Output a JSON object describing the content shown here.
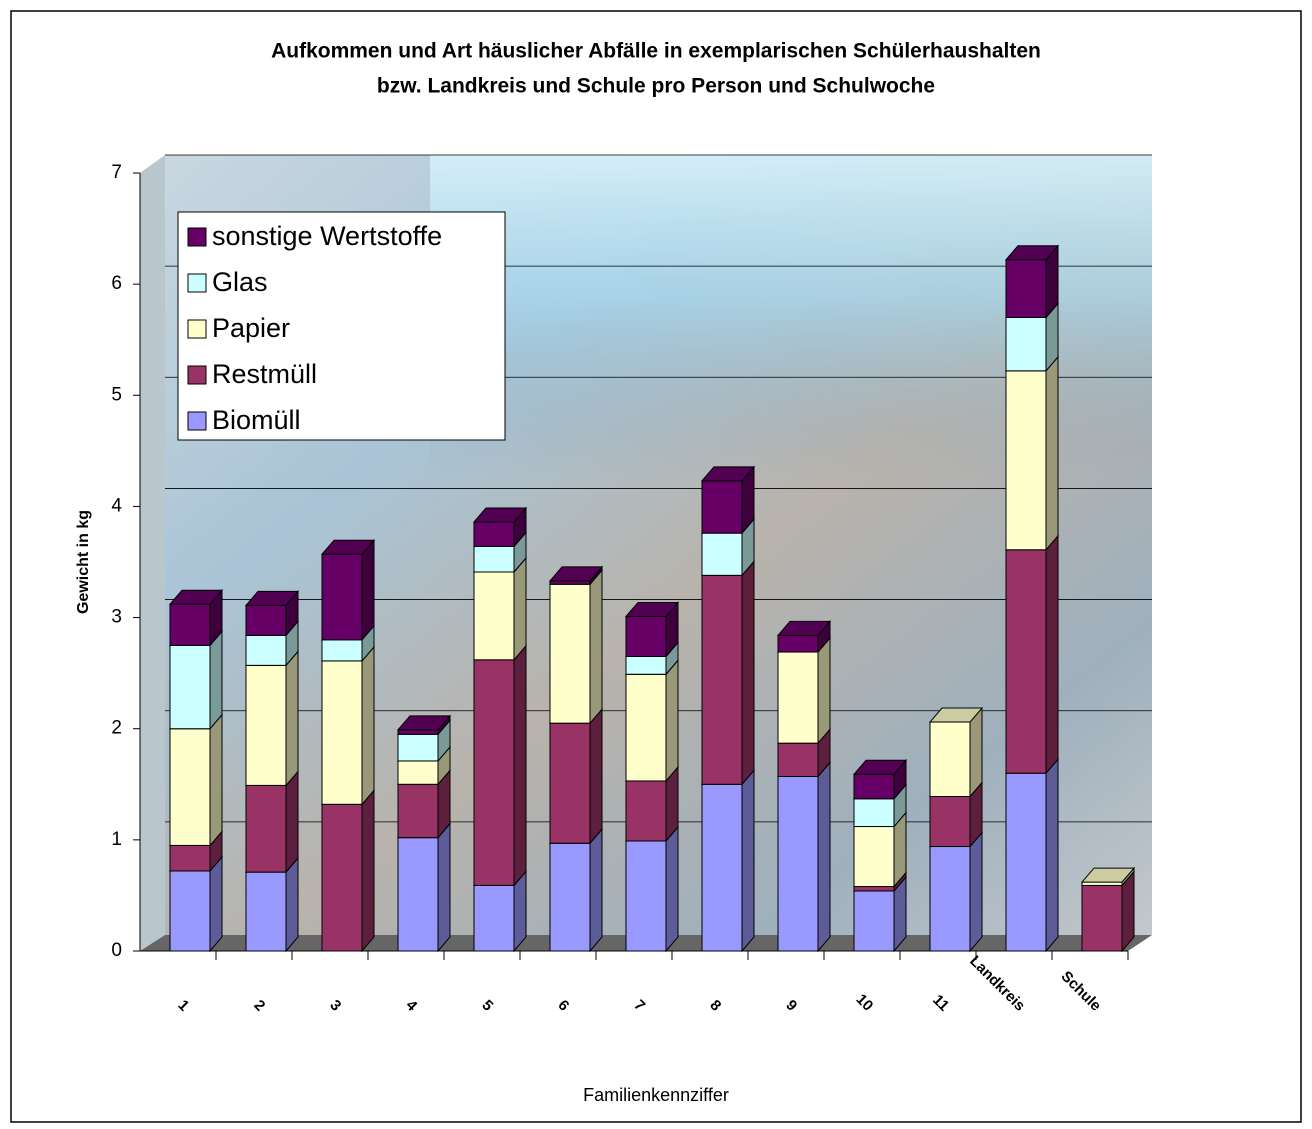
{
  "chart_data": {
    "type": "stacked-bar-3d",
    "title": [
      "Aufkommen und Art häuslicher Abfälle in exemplarischen Schülerhaushalten",
      "bzw. Landkreis und Schule pro Person und Schulwoche"
    ],
    "x_label": "Familienkennziffer",
    "y_label": "Gewicht in kg",
    "categories": [
      "1",
      "2",
      "3",
      "4",
      "5",
      "6",
      "7",
      "8",
      "9",
      "10",
      "11",
      "Landkreis",
      "Schule"
    ],
    "series": [
      {
        "name": "Biomüll",
        "color": "#9999ff",
        "values": [
          0.72,
          0.71,
          0,
          1.02,
          0.59,
          0.97,
          0.99,
          1.5,
          1.57,
          0.54,
          0.94,
          1.6,
          0
        ]
      },
      {
        "name": "Restmüll",
        "color": "#993366",
        "values": [
          0.23,
          0.78,
          1.32,
          0.48,
          2.03,
          1.08,
          0.54,
          1.88,
          0.3,
          0.04,
          0.45,
          2.01,
          0.59
        ]
      },
      {
        "name": "Papier",
        "color": "#ffffcc",
        "values": [
          1.05,
          1.08,
          1.29,
          0.21,
          0.79,
          1.25,
          0.96,
          0,
          0.82,
          0.54,
          0.67,
          1.61,
          0.03
        ]
      },
      {
        "name": "Glas",
        "color": "#ccffff",
        "values": [
          0.75,
          0.27,
          0.19,
          0.24,
          0.23,
          0,
          0.16,
          0.38,
          0,
          0.25,
          0,
          0.48,
          0
        ]
      },
      {
        "name": "sonstige Wertstoffe",
        "color": "#660066",
        "values": [
          0.37,
          0.27,
          0.77,
          0.04,
          0.22,
          0.03,
          0.36,
          0.47,
          0.15,
          0.22,
          0,
          0.52,
          0
        ]
      }
    ],
    "ylim": [
      0,
      7
    ],
    "yticks": [
      0,
      1,
      2,
      3,
      4,
      5,
      6,
      7
    ],
    "grid": true,
    "legend": "top-left"
  }
}
